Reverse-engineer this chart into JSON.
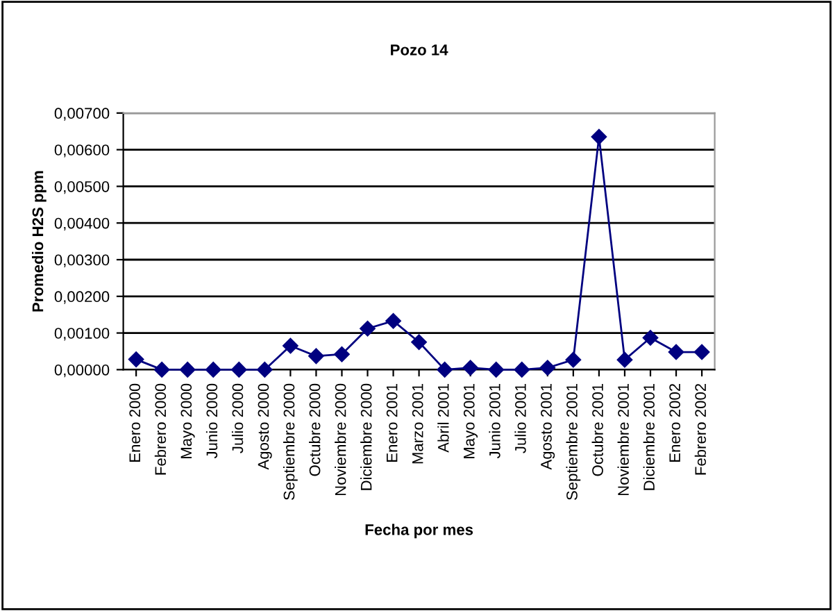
{
  "chart_data": {
    "type": "line",
    "title": "Pozo 14",
    "xlabel": "Fecha por mes",
    "ylabel": "Promedio H2S ppm",
    "categories": [
      "Enero 2000",
      "Febrero 2000",
      "Mayo 2000",
      "Junio 2000",
      "Julio 2000",
      "Agosto 2000",
      "Septiembre 2000",
      "Octubre 2000",
      "Noviembre 2000",
      "Diciembre 2000",
      "Enero 2001",
      "Marzo 2001",
      "Abril 2001",
      "Mayo 2001",
      "Junio 2001",
      "Julio 2001",
      "Agosto 2001",
      "Septiembre 2001",
      "Octubre 2001",
      "Noviembre 2001",
      "Diciembre 2001",
      "Enero 2002",
      "Febrero 2002"
    ],
    "series": [
      {
        "color": "#000080",
        "values": [
          0.00028,
          0.0,
          0.0,
          0.0,
          0.0,
          0.0,
          0.00065,
          0.00037,
          0.00042,
          0.00112,
          0.00133,
          0.00075,
          0.0,
          5e-05,
          0.0,
          0.0,
          5e-05,
          0.00027,
          0.00635,
          0.00027,
          0.00087,
          0.00048,
          0.00048
        ]
      }
    ],
    "ylim": [
      0,
      0.007
    ],
    "yticks": [
      {
        "value": 0,
        "label": "0,00000"
      },
      {
        "value": 0.001,
        "label": "0,00100"
      },
      {
        "value": 0.002,
        "label": "0,00200"
      },
      {
        "value": 0.003,
        "label": "0,00300"
      },
      {
        "value": 0.004,
        "label": "0,00400"
      },
      {
        "value": 0.005,
        "label": "0,00500"
      },
      {
        "value": 0.006,
        "label": "0,00600"
      },
      {
        "value": 0.007,
        "label": "0,00700"
      }
    ],
    "grid": "y",
    "legend": false,
    "marker": "diamond",
    "line_style": "solid"
  }
}
